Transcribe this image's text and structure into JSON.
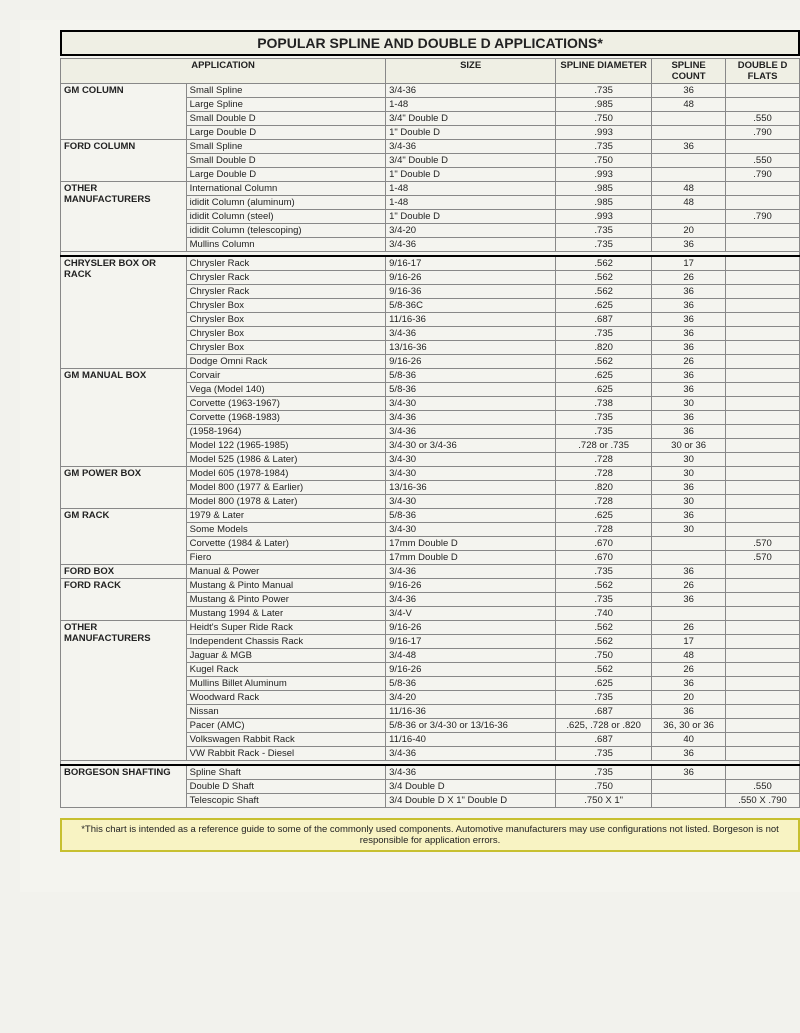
{
  "title": "POPULAR SPLINE AND DOUBLE D APPLICATIONS*",
  "headers": {
    "application": "APPLICATION",
    "size": "SIZE",
    "diameter": "SPLINE DIAMETER",
    "count": "SPLINE COUNT",
    "flats": "DOUBLE D FLATS"
  },
  "sections": [
    {
      "category": "GM COLUMN",
      "rows": [
        {
          "app": "Small Spline",
          "size": "3/4-36",
          "dia": ".735",
          "cnt": "36",
          "flat": ""
        },
        {
          "app": "Large Spline",
          "size": "1-48",
          "dia": ".985",
          "cnt": "48",
          "flat": ""
        },
        {
          "app": "Small Double D",
          "size": "3/4\" Double D",
          "dia": ".750",
          "cnt": "",
          "flat": ".550"
        },
        {
          "app": "Large Double D",
          "size": "1\" Double D",
          "dia": ".993",
          "cnt": "",
          "flat": ".790"
        }
      ]
    },
    {
      "category": "FORD COLUMN",
      "rows": [
        {
          "app": "Small Spline",
          "size": "3/4-36",
          "dia": ".735",
          "cnt": "36",
          "flat": ""
        },
        {
          "app": "Small Double D",
          "size": "3/4\" Double D",
          "dia": ".750",
          "cnt": "",
          "flat": ".550"
        },
        {
          "app": "Large Double D",
          "size": "1\" Double D",
          "dia": ".993",
          "cnt": "",
          "flat": ".790"
        }
      ]
    },
    {
      "category": "OTHER MANUFACTURERS",
      "rows": [
        {
          "app": "International Column",
          "size": "1-48",
          "dia": ".985",
          "cnt": "48",
          "flat": ""
        },
        {
          "app": "ididit Column (aluminum)",
          "size": "1-48",
          "dia": ".985",
          "cnt": "48",
          "flat": ""
        },
        {
          "app": "ididit Column (steel)",
          "size": "1\" Double D",
          "dia": ".993",
          "cnt": "",
          "flat": ".790"
        },
        {
          "app": "ididit Column (telescoping)",
          "size": "3/4-20",
          "dia": ".735",
          "cnt": "20",
          "flat": ""
        },
        {
          "app": "Mullins Column",
          "size": "3/4-36",
          "dia": ".735",
          "cnt": "36",
          "flat": ""
        }
      ]
    },
    {
      "category": "CHRYSLER BOX OR RACK",
      "gap": true,
      "rows": [
        {
          "app": "Chrysler Rack",
          "size": "9/16-17",
          "dia": ".562",
          "cnt": "17",
          "flat": ""
        },
        {
          "app": "Chrysler Rack",
          "size": "9/16-26",
          "dia": ".562",
          "cnt": "26",
          "flat": ""
        },
        {
          "app": "Chrysler Rack",
          "size": "9/16-36",
          "dia": ".562",
          "cnt": "36",
          "flat": ""
        },
        {
          "app": "Chrysler Box",
          "size": "5/8-36C",
          "dia": ".625",
          "cnt": "36",
          "flat": ""
        },
        {
          "app": "Chrysler Box",
          "size": "11/16-36",
          "dia": ".687",
          "cnt": "36",
          "flat": ""
        },
        {
          "app": "Chrysler Box",
          "size": "3/4-36",
          "dia": ".735",
          "cnt": "36",
          "flat": ""
        },
        {
          "app": "Chrysler Box",
          "size": "13/16-36",
          "dia": ".820",
          "cnt": "36",
          "flat": ""
        },
        {
          "app": "Dodge Omni Rack",
          "size": "9/16-26",
          "dia": ".562",
          "cnt": "26",
          "flat": ""
        }
      ]
    },
    {
      "category": "GM MANUAL BOX",
      "rows": [
        {
          "app": "Corvair",
          "size": "5/8-36",
          "dia": ".625",
          "cnt": "36",
          "flat": ""
        },
        {
          "app": "Vega (Model 140)",
          "size": "5/8-36",
          "dia": ".625",
          "cnt": "36",
          "flat": ""
        },
        {
          "app": "Corvette (1963-1967)",
          "size": "3/4-30",
          "dia": ".738",
          "cnt": "30",
          "flat": ""
        },
        {
          "app": "Corvette (1968-1983)",
          "size": "3/4-36",
          "dia": ".735",
          "cnt": "36",
          "flat": ""
        },
        {
          "app": "(1958-1964)",
          "size": "3/4-36",
          "dia": ".735",
          "cnt": "36",
          "flat": ""
        },
        {
          "app": "Model 122 (1965-1985)",
          "size": "3/4-30 or 3/4-36",
          "dia": ".728 or .735",
          "cnt": "30 or 36",
          "flat": ""
        },
        {
          "app": "Model 525 (1986 & Later)",
          "size": "3/4-30",
          "dia": ".728",
          "cnt": "30",
          "flat": ""
        }
      ]
    },
    {
      "category": "GM POWER BOX",
      "rows": [
        {
          "app": "Model 605 (1978-1984)",
          "size": "3/4-30",
          "dia": ".728",
          "cnt": "30",
          "flat": ""
        },
        {
          "app": "Model 800 (1977 & Earlier)",
          "size": "13/16-36",
          "dia": ".820",
          "cnt": "36",
          "flat": ""
        },
        {
          "app": "Model 800 (1978 & Later)",
          "size": "3/4-30",
          "dia": ".728",
          "cnt": "30",
          "flat": ""
        }
      ]
    },
    {
      "category": "GM RACK",
      "rows": [
        {
          "app": "1979 & Later",
          "size": "5/8-36",
          "dia": ".625",
          "cnt": "36",
          "flat": ""
        },
        {
          "app": "Some Models",
          "size": "3/4-30",
          "dia": ".728",
          "cnt": "30",
          "flat": ""
        },
        {
          "app": "Corvette (1984 & Later)",
          "size": "17mm Double D",
          "dia": ".670",
          "cnt": "",
          "flat": ".570"
        },
        {
          "app": "Fiero",
          "size": "17mm Double D",
          "dia": ".670",
          "cnt": "",
          "flat": ".570"
        }
      ]
    },
    {
      "category": "FORD BOX",
      "rows": [
        {
          "app": "Manual & Power",
          "size": "3/4-36",
          "dia": ".735",
          "cnt": "36",
          "flat": ""
        }
      ]
    },
    {
      "category": "FORD RACK",
      "rows": [
        {
          "app": "Mustang & Pinto Manual",
          "size": "9/16-26",
          "dia": ".562",
          "cnt": "26",
          "flat": ""
        },
        {
          "app": "Mustang & Pinto Power",
          "size": "3/4-36",
          "dia": ".735",
          "cnt": "36",
          "flat": ""
        },
        {
          "app": "Mustang 1994 & Later",
          "size": "3/4-V",
          "dia": ".740",
          "cnt": "",
          "flat": ""
        }
      ]
    },
    {
      "category": "OTHER MANUFACTURERS",
      "rows": [
        {
          "app": "Heidt's Super Ride Rack",
          "size": "9/16-26",
          "dia": ".562",
          "cnt": "26",
          "flat": ""
        },
        {
          "app": "Independent Chassis Rack",
          "size": "9/16-17",
          "dia": ".562",
          "cnt": "17",
          "flat": ""
        },
        {
          "app": "Jaguar & MGB",
          "size": "3/4-48",
          "dia": ".750",
          "cnt": "48",
          "flat": ""
        },
        {
          "app": "Kugel Rack",
          "size": "9/16-26",
          "dia": ".562",
          "cnt": "26",
          "flat": ""
        },
        {
          "app": "Mullins Billet Aluminum",
          "size": "5/8-36",
          "dia": ".625",
          "cnt": "36",
          "flat": ""
        },
        {
          "app": "Woodward Rack",
          "size": "3/4-20",
          "dia": ".735",
          "cnt": "20",
          "flat": ""
        },
        {
          "app": "Nissan",
          "size": "11/16-36",
          "dia": ".687",
          "cnt": "36",
          "flat": ""
        },
        {
          "app": "Pacer (AMC)",
          "size": "5/8-36 or 3/4-30 or 13/16-36",
          "dia": ".625, .728 or .820",
          "cnt": "36, 30 or 36",
          "flat": ""
        },
        {
          "app": "Volkswagen Rabbit Rack",
          "size": "11/16-40",
          "dia": ".687",
          "cnt": "40",
          "flat": ""
        },
        {
          "app": "VW Rabbit Rack - Diesel",
          "size": "3/4-36",
          "dia": ".735",
          "cnt": "36",
          "flat": ""
        }
      ]
    },
    {
      "category": "BORGESON SHAFTING",
      "gap": true,
      "rows": [
        {
          "app": "Spline Shaft",
          "size": "3/4-36",
          "dia": ".735",
          "cnt": "36",
          "flat": ""
        },
        {
          "app": "Double D Shaft",
          "size": "3/4 Double D",
          "dia": ".750",
          "cnt": "",
          "flat": ".550"
        },
        {
          "app": "Telescopic Shaft",
          "size": "3/4 Double D X 1\" Double D",
          "dia": ".750 X 1\"",
          "cnt": "",
          "flat": ".550 X .790"
        }
      ]
    }
  ],
  "footer": "*This chart is intended as a reference guide to some of the commonly used components. Automotive manufacturers may use configurations not listed. Borgeson is not responsible for application errors."
}
